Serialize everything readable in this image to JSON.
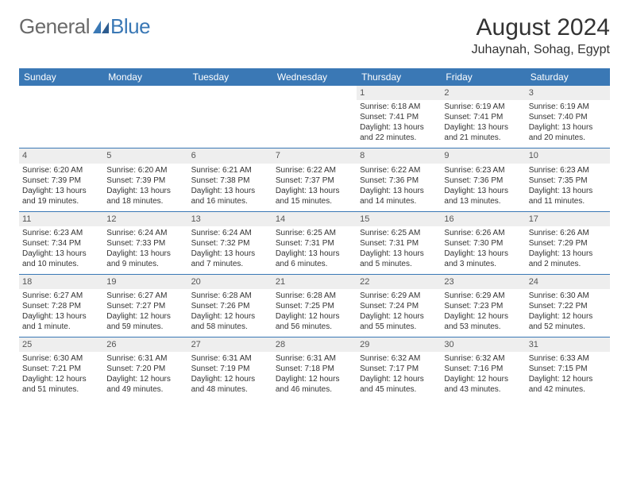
{
  "brand": {
    "part1": "General",
    "part2": "Blue"
  },
  "title": "August 2024",
  "location": "Juhaynah, Sohag, Egypt",
  "colors": {
    "accent": "#3a78b5",
    "daynum_bg": "#eeeeee",
    "text": "#333333",
    "logo_gray": "#6a6a6a"
  },
  "daysOfWeek": [
    "Sunday",
    "Monday",
    "Tuesday",
    "Wednesday",
    "Thursday",
    "Friday",
    "Saturday"
  ],
  "weeks": [
    [
      {
        "n": "",
        "t": ""
      },
      {
        "n": "",
        "t": ""
      },
      {
        "n": "",
        "t": ""
      },
      {
        "n": "",
        "t": ""
      },
      {
        "n": "1",
        "t": "Sunrise: 6:18 AM\nSunset: 7:41 PM\nDaylight: 13 hours and 22 minutes."
      },
      {
        "n": "2",
        "t": "Sunrise: 6:19 AM\nSunset: 7:41 PM\nDaylight: 13 hours and 21 minutes."
      },
      {
        "n": "3",
        "t": "Sunrise: 6:19 AM\nSunset: 7:40 PM\nDaylight: 13 hours and 20 minutes."
      }
    ],
    [
      {
        "n": "4",
        "t": "Sunrise: 6:20 AM\nSunset: 7:39 PM\nDaylight: 13 hours and 19 minutes."
      },
      {
        "n": "5",
        "t": "Sunrise: 6:20 AM\nSunset: 7:39 PM\nDaylight: 13 hours and 18 minutes."
      },
      {
        "n": "6",
        "t": "Sunrise: 6:21 AM\nSunset: 7:38 PM\nDaylight: 13 hours and 16 minutes."
      },
      {
        "n": "7",
        "t": "Sunrise: 6:22 AM\nSunset: 7:37 PM\nDaylight: 13 hours and 15 minutes."
      },
      {
        "n": "8",
        "t": "Sunrise: 6:22 AM\nSunset: 7:36 PM\nDaylight: 13 hours and 14 minutes."
      },
      {
        "n": "9",
        "t": "Sunrise: 6:23 AM\nSunset: 7:36 PM\nDaylight: 13 hours and 13 minutes."
      },
      {
        "n": "10",
        "t": "Sunrise: 6:23 AM\nSunset: 7:35 PM\nDaylight: 13 hours and 11 minutes."
      }
    ],
    [
      {
        "n": "11",
        "t": "Sunrise: 6:23 AM\nSunset: 7:34 PM\nDaylight: 13 hours and 10 minutes."
      },
      {
        "n": "12",
        "t": "Sunrise: 6:24 AM\nSunset: 7:33 PM\nDaylight: 13 hours and 9 minutes."
      },
      {
        "n": "13",
        "t": "Sunrise: 6:24 AM\nSunset: 7:32 PM\nDaylight: 13 hours and 7 minutes."
      },
      {
        "n": "14",
        "t": "Sunrise: 6:25 AM\nSunset: 7:31 PM\nDaylight: 13 hours and 6 minutes."
      },
      {
        "n": "15",
        "t": "Sunrise: 6:25 AM\nSunset: 7:31 PM\nDaylight: 13 hours and 5 minutes."
      },
      {
        "n": "16",
        "t": "Sunrise: 6:26 AM\nSunset: 7:30 PM\nDaylight: 13 hours and 3 minutes."
      },
      {
        "n": "17",
        "t": "Sunrise: 6:26 AM\nSunset: 7:29 PM\nDaylight: 13 hours and 2 minutes."
      }
    ],
    [
      {
        "n": "18",
        "t": "Sunrise: 6:27 AM\nSunset: 7:28 PM\nDaylight: 13 hours and 1 minute."
      },
      {
        "n": "19",
        "t": "Sunrise: 6:27 AM\nSunset: 7:27 PM\nDaylight: 12 hours and 59 minutes."
      },
      {
        "n": "20",
        "t": "Sunrise: 6:28 AM\nSunset: 7:26 PM\nDaylight: 12 hours and 58 minutes."
      },
      {
        "n": "21",
        "t": "Sunrise: 6:28 AM\nSunset: 7:25 PM\nDaylight: 12 hours and 56 minutes."
      },
      {
        "n": "22",
        "t": "Sunrise: 6:29 AM\nSunset: 7:24 PM\nDaylight: 12 hours and 55 minutes."
      },
      {
        "n": "23",
        "t": "Sunrise: 6:29 AM\nSunset: 7:23 PM\nDaylight: 12 hours and 53 minutes."
      },
      {
        "n": "24",
        "t": "Sunrise: 6:30 AM\nSunset: 7:22 PM\nDaylight: 12 hours and 52 minutes."
      }
    ],
    [
      {
        "n": "25",
        "t": "Sunrise: 6:30 AM\nSunset: 7:21 PM\nDaylight: 12 hours and 51 minutes."
      },
      {
        "n": "26",
        "t": "Sunrise: 6:31 AM\nSunset: 7:20 PM\nDaylight: 12 hours and 49 minutes."
      },
      {
        "n": "27",
        "t": "Sunrise: 6:31 AM\nSunset: 7:19 PM\nDaylight: 12 hours and 48 minutes."
      },
      {
        "n": "28",
        "t": "Sunrise: 6:31 AM\nSunset: 7:18 PM\nDaylight: 12 hours and 46 minutes."
      },
      {
        "n": "29",
        "t": "Sunrise: 6:32 AM\nSunset: 7:17 PM\nDaylight: 12 hours and 45 minutes."
      },
      {
        "n": "30",
        "t": "Sunrise: 6:32 AM\nSunset: 7:16 PM\nDaylight: 12 hours and 43 minutes."
      },
      {
        "n": "31",
        "t": "Sunrise: 6:33 AM\nSunset: 7:15 PM\nDaylight: 12 hours and 42 minutes."
      }
    ]
  ]
}
